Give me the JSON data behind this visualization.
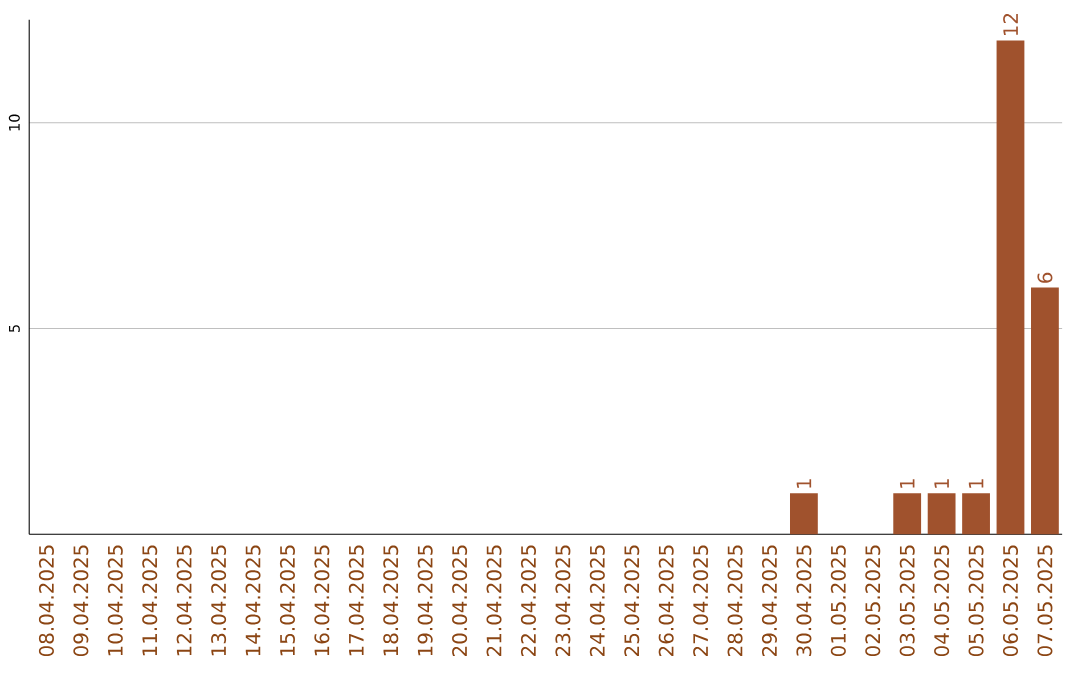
{
  "chart_data": {
    "type": "bar",
    "categories": [
      "08.04.2025",
      "09.04.2025",
      "10.04.2025",
      "11.04.2025",
      "12.04.2025",
      "13.04.2025",
      "14.04.2025",
      "15.04.2025",
      "16.04.2025",
      "17.04.2025",
      "18.04.2025",
      "19.04.2025",
      "20.04.2025",
      "21.04.2025",
      "22.04.2025",
      "23.04.2025",
      "24.04.2025",
      "25.04.2025",
      "26.04.2025",
      "27.04.2025",
      "28.04.2025",
      "29.04.2025",
      "30.04.2025",
      "01.05.2025",
      "02.05.2025",
      "03.05.2025",
      "04.05.2025",
      "05.05.2025",
      "06.05.2025",
      "07.05.2025"
    ],
    "values": [
      0,
      0,
      0,
      0,
      0,
      0,
      0,
      0,
      0,
      0,
      0,
      0,
      0,
      0,
      0,
      0,
      0,
      0,
      0,
      0,
      0,
      0,
      1,
      0,
      0,
      1,
      1,
      1,
      12,
      6
    ],
    "value_labels": [
      null,
      null,
      null,
      null,
      null,
      null,
      null,
      null,
      null,
      null,
      null,
      null,
      null,
      null,
      null,
      null,
      null,
      null,
      null,
      null,
      null,
      null,
      "1",
      null,
      null,
      "1",
      "1",
      "1",
      "12",
      "6"
    ],
    "color": "#a0522d",
    "ylim": [
      0,
      12.5
    ],
    "yticks": [
      5,
      10
    ],
    "grid": "y"
  }
}
